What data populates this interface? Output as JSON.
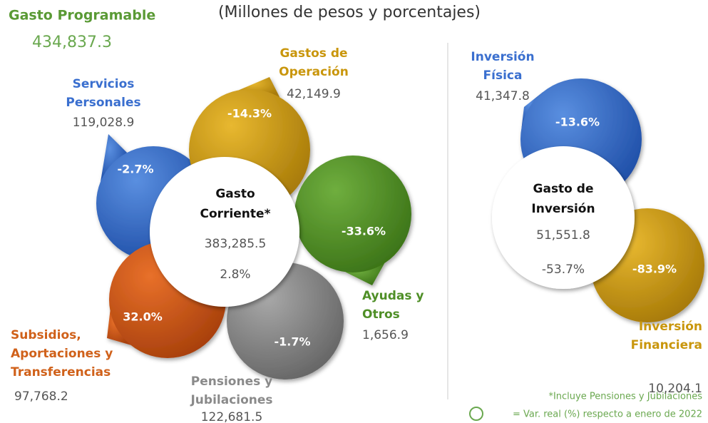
{
  "header": {
    "title": "Gasto Programable",
    "total": "434,837.3",
    "subtitle": "(Millones de pesos y porcentajes)"
  },
  "gasto_corriente": {
    "label": [
      "Gasto",
      "Corriente*"
    ],
    "amount": "383,285.5",
    "change": "2.8%",
    "components": [
      {
        "label": [
          "Servicios",
          "Personales"
        ],
        "amount": "119,028.9",
        "change": "-2.7%"
      },
      {
        "label": [
          "Gastos de",
          "Operación"
        ],
        "amount": "42,149.9",
        "change": "-14.3%"
      },
      {
        "label": [
          "Ayudas y",
          "Otros"
        ],
        "amount": "1,656.9",
        "change": "-33.6%"
      },
      {
        "label": [
          "Pensiones y",
          "Jubilaciones"
        ],
        "amount": "122,681.5",
        "change": "-1.7%"
      },
      {
        "label": [
          "Subsidios,",
          "Aportaciones y",
          "Transferencias"
        ],
        "amount": "97,768.2",
        "change": "32.0%"
      }
    ]
  },
  "gasto_inversion": {
    "label": [
      "Gasto de",
      "Inversión"
    ],
    "amount": "51,551.8",
    "change": "-53.7%",
    "components": [
      {
        "label": [
          "Inversión",
          "Física"
        ],
        "amount": "41,347.8",
        "change": "-13.6%"
      },
      {
        "label": [
          "Inversión",
          "Financiera"
        ],
        "amount": "10,204.1",
        "change": "-83.9%"
      }
    ]
  },
  "notes": {
    "footnote": "*Incluye Pensiones y Jubilaciones",
    "legend": "= Var. real (%) respecto a enero de 2022"
  }
}
